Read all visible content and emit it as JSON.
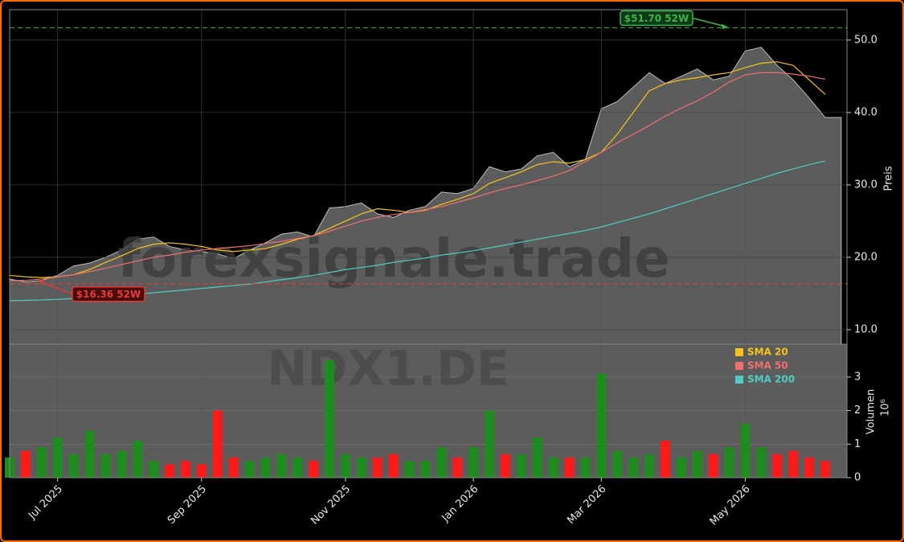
{
  "chart_data": {
    "type": "area",
    "watermark": "forexsignale.trade",
    "symbol": "NDX1.DE",
    "ylabel": "Preis",
    "color": "#5c5c5c",
    "line_color": "#bdbdbd",
    "grid": true,
    "ylim": [
      8.0,
      54.2
    ],
    "yticks": [
      {
        "value": 10,
        "label": "10.0"
      },
      {
        "value": 20,
        "label": "20.0"
      },
      {
        "value": 30,
        "label": "30.0"
      },
      {
        "value": 40,
        "label": "40.0"
      },
      {
        "value": 50,
        "label": "50.0"
      }
    ],
    "values": [
      17.0,
      16.6,
      16.8,
      17.5,
      18.8,
      19.2,
      20.0,
      21.0,
      22.5,
      22.8,
      21.5,
      21.0,
      20.8,
      20.5,
      19.8,
      21.0,
      22.0,
      23.2,
      23.5,
      22.8,
      26.8,
      27.0,
      27.5,
      26.0,
      25.5,
      26.5,
      27.0,
      29.0,
      28.8,
      29.5,
      32.5,
      31.8,
      32.2,
      34.0,
      34.5,
      32.5,
      33.5,
      40.5,
      41.5,
      43.5,
      45.5,
      44.0,
      45.0,
      46.0,
      44.5,
      45.0,
      48.5,
      49.0,
      46.5,
      44.5,
      42.0,
      39.3
    ],
    "series": [
      {
        "name": "SMA 20",
        "color": "#f5c518",
        "values": [
          17.5,
          17.3,
          17.2,
          17.3,
          17.6,
          18.3,
          19.3,
          20.2,
          21.2,
          21.8,
          22.0,
          21.8,
          21.5,
          21.0,
          20.8,
          21.0,
          21.2,
          21.8,
          22.5,
          23.0,
          24.0,
          25.0,
          26.0,
          26.7,
          26.5,
          26.2,
          26.5,
          27.3,
          28.0,
          28.8,
          30.2,
          31.0,
          31.8,
          32.8,
          33.2,
          33.0,
          33.5,
          34.5,
          37.0,
          40.0,
          43.0,
          44.0,
          44.5,
          44.8,
          45.2,
          45.5,
          46.2,
          46.8,
          47.0,
          46.5,
          44.5,
          42.5
        ]
      },
      {
        "name": "SMA 50",
        "color": "#f07070",
        "values": [
          16.8,
          16.8,
          17.0,
          17.3,
          17.6,
          18.0,
          18.5,
          19.0,
          19.5,
          20.0,
          20.3,
          20.7,
          21.0,
          21.2,
          21.4,
          21.6,
          21.9,
          22.2,
          22.6,
          23.0,
          23.6,
          24.3,
          25.0,
          25.5,
          25.9,
          26.2,
          26.6,
          27.0,
          27.6,
          28.2,
          28.9,
          29.5,
          30.0,
          30.6,
          31.2,
          32.0,
          33.2,
          34.5,
          35.8,
          37.0,
          38.2,
          39.5,
          40.6,
          41.6,
          42.8,
          44.2,
          45.2,
          45.5,
          45.5,
          45.3,
          45.0,
          44.6
        ]
      },
      {
        "name": "SMA 200",
        "color": "#4ecdc4",
        "values": [
          14.0,
          14.05,
          14.1,
          14.2,
          14.3,
          14.4,
          14.5,
          14.7,
          14.9,
          15.1,
          15.3,
          15.5,
          15.7,
          15.9,
          16.1,
          16.3,
          16.6,
          16.9,
          17.2,
          17.5,
          17.9,
          18.3,
          18.6,
          18.9,
          19.3,
          19.6,
          19.9,
          20.3,
          20.6,
          20.9,
          21.3,
          21.7,
          22.1,
          22.5,
          22.9,
          23.3,
          23.7,
          24.2,
          24.8,
          25.4,
          26.0,
          26.7,
          27.4,
          28.1,
          28.8,
          29.5,
          30.2,
          30.9,
          31.6,
          32.2,
          32.8,
          33.3
        ]
      }
    ],
    "annotations": [
      {
        "text": "$51.70 52W",
        "value": 51.7,
        "color": "#3cb44b"
      },
      {
        "text": "$16.36 52W",
        "value": 16.36,
        "color": "#e03c3c"
      }
    ],
    "categories": [
      null,
      null,
      null,
      "Jul 2025",
      null,
      null,
      null,
      null,
      null,
      null,
      null,
      null,
      "Sep 2025",
      null,
      null,
      null,
      null,
      null,
      null,
      null,
      null,
      "Nov 2025",
      null,
      null,
      null,
      null,
      null,
      null,
      null,
      "Jan 2026",
      null,
      null,
      null,
      null,
      null,
      null,
      null,
      "Mar 2026",
      null,
      null,
      null,
      null,
      null,
      null,
      null,
      null,
      "May 2026",
      null,
      null,
      null,
      null,
      null
    ],
    "volume": {
      "type": "bar",
      "ylabel": "Volumen",
      "exponent": "10⁶",
      "up_color": "#1e8c1e",
      "down_color": "#ff1a1a",
      "ylim": [
        0,
        3.98
      ],
      "yticks": [
        0,
        1,
        2,
        3
      ],
      "values": [
        0.6,
        0.8,
        0.9,
        1.2,
        0.7,
        1.4,
        0.7,
        0.8,
        1.1,
        0.5,
        0.4,
        0.5,
        0.4,
        2.0,
        0.6,
        0.5,
        0.6,
        0.7,
        0.6,
        0.5,
        3.5,
        0.7,
        0.6,
        0.6,
        0.7,
        0.5,
        0.5,
        0.9,
        0.6,
        0.9,
        2.0,
        0.7,
        0.7,
        1.2,
        0.6,
        0.6,
        0.6,
        3.1,
        0.8,
        0.6,
        0.7,
        1.1,
        0.6,
        0.8,
        0.7,
        0.9,
        1.6,
        0.9,
        0.7,
        0.8,
        0.6,
        0.5
      ]
    }
  }
}
